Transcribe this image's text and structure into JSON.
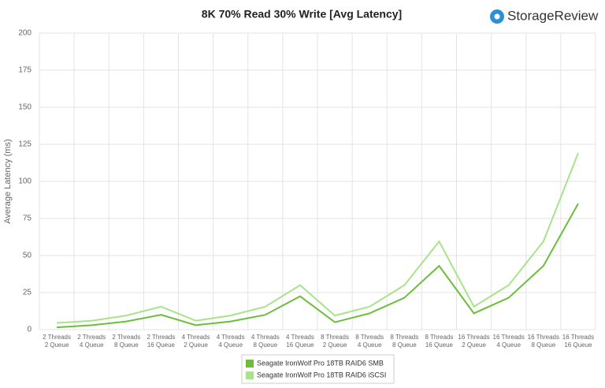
{
  "chart_data": {
    "type": "line",
    "title": "8K 70% Read 30% Write [Avg Latency]",
    "brand": "StorageReview",
    "ylabel": "Average Latency (ms)",
    "categories": [
      [
        "2 Threads",
        "2 Queue"
      ],
      [
        "2 Threads",
        "4 Queue"
      ],
      [
        "2 Threads",
        "8 Queue"
      ],
      [
        "2 Threads",
        "16 Queue"
      ],
      [
        "4 Threads",
        "2 Queue"
      ],
      [
        "4 Threads",
        "4 Queue"
      ],
      [
        "4 Threads",
        "8 Queue"
      ],
      [
        "4 Threads",
        "16 Queue"
      ],
      [
        "8 Threads",
        "2 Queue"
      ],
      [
        "8 Threads",
        "4 Queue"
      ],
      [
        "8 Threads",
        "8 Queue"
      ],
      [
        "8 Threads",
        "16 Queue"
      ],
      [
        "16 Threads",
        "2 Queue"
      ],
      [
        "16 Threads",
        "4 Queue"
      ],
      [
        "16 Threads",
        "8 Queue"
      ],
      [
        "16 Threads",
        "16 Queue"
      ]
    ],
    "series": [
      {
        "name": "Seagate IronWolf Pro 18TB RAID6 SMB",
        "color": "#6cbd3a",
        "values": [
          1.5,
          3,
          5.5,
          10,
          3,
          5.5,
          10,
          22.5,
          5,
          11,
          21.5,
          43,
          11,
          21.5,
          43,
          85
        ]
      },
      {
        "name": "Seagate IronWolf Pro 18TB RAID6 iSCSI",
        "color": "#a8e38a",
        "values": [
          4.5,
          6,
          9.5,
          15.5,
          6,
          9.5,
          15.5,
          30,
          9.5,
          15.5,
          30,
          59.5,
          15.5,
          30,
          59.5,
          119
        ]
      }
    ],
    "ylim": [
      0,
      200
    ],
    "yticks": [
      0,
      25,
      50,
      75,
      100,
      125,
      150,
      175,
      200
    ],
    "grid": true
  }
}
